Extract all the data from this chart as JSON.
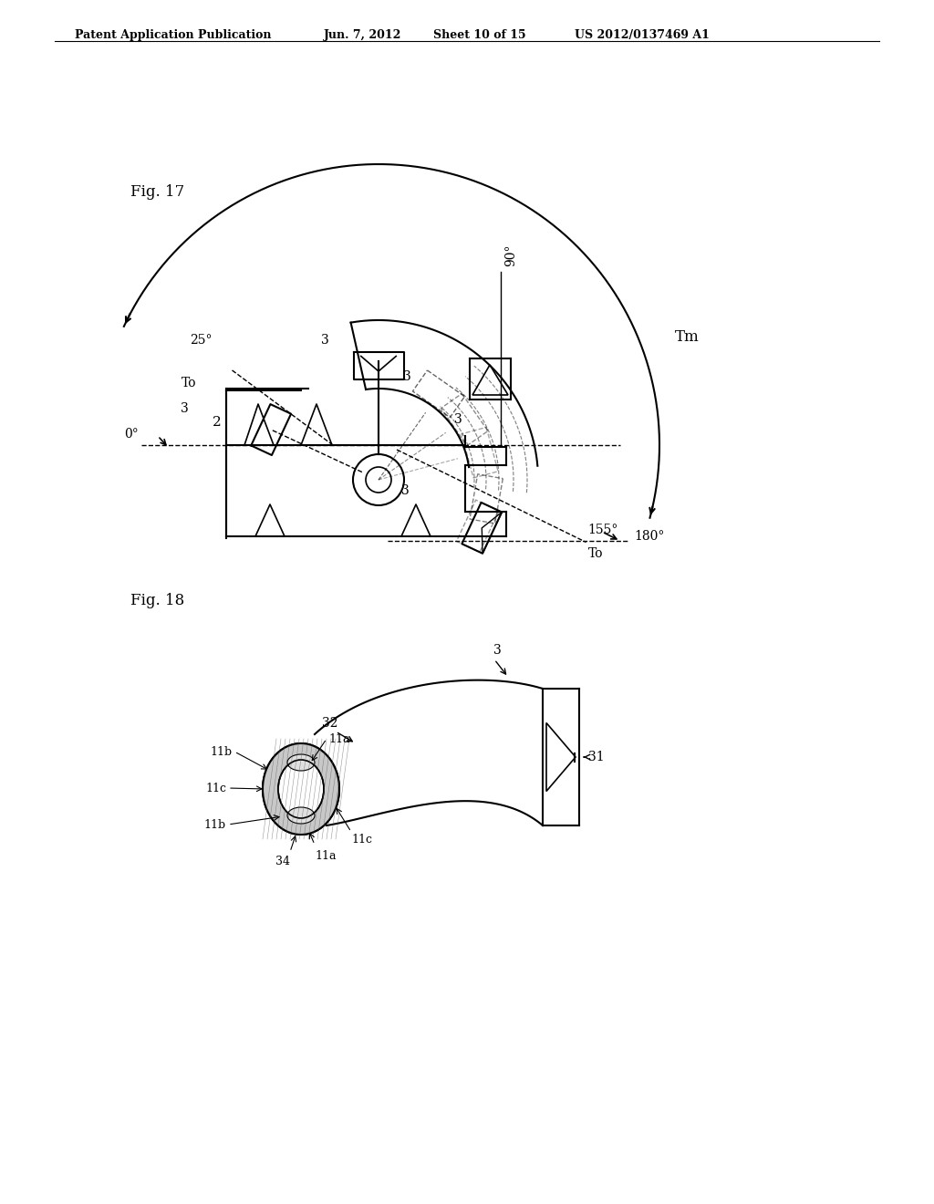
{
  "header_text": "Patent Application Publication",
  "header_date": "Jun. 7, 2012",
  "header_sheet": "Sheet 10 of 15",
  "header_patent": "US 2012/0137469 A1",
  "fig17_label": "Fig. 17",
  "fig18_label": "Fig. 18",
  "bg": "#ffffff",
  "lc": "#000000"
}
